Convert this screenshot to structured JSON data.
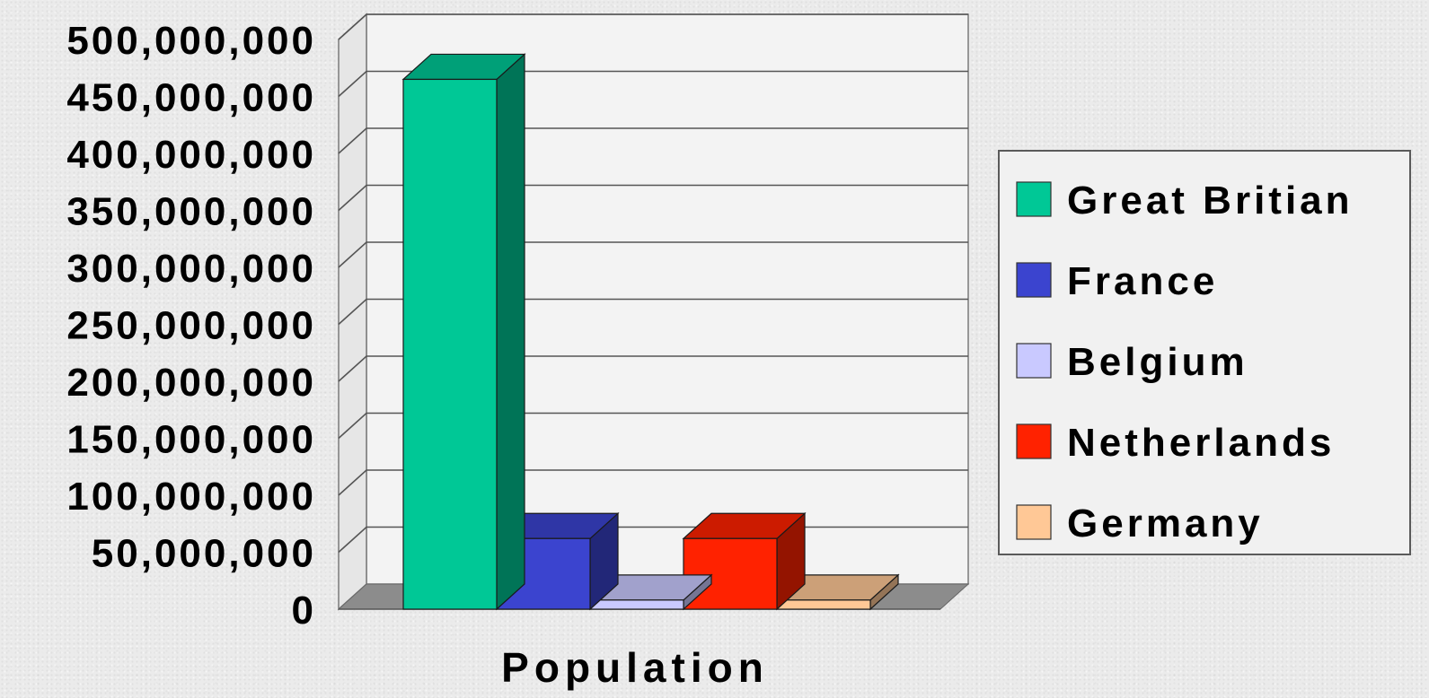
{
  "chart_data": {
    "type": "bar",
    "categories": [
      "Population"
    ],
    "xlabel": "Population",
    "ylim": [
      0,
      500000000
    ],
    "yticks": [
      0,
      50000000,
      100000000,
      150000000,
      200000000,
      250000000,
      300000000,
      350000000,
      400000000,
      450000000,
      500000000
    ],
    "ytick_labels": [
      "0",
      "50,000,000",
      "100,000,000",
      "150,000,000",
      "200,000,000",
      "250,000,000",
      "300,000,000",
      "350,000,000",
      "400,000,000",
      "450,000,000",
      "500,000,000"
    ],
    "grid": true,
    "three_d": true,
    "legend_position": "right",
    "series": [
      {
        "name": "Great Britian",
        "values": [
          465000000
        ],
        "color": "#00c896"
      },
      {
        "name": "France",
        "values": [
          62000000
        ],
        "color": "#3b44cf"
      },
      {
        "name": "Belgium",
        "values": [
          8000000
        ],
        "color": "#c9c9ff"
      },
      {
        "name": "Netherlands",
        "values": [
          62000000
        ],
        "color": "#ff2200"
      },
      {
        "name": "Germany",
        "values": [
          8000000
        ],
        "color": "#ffc896"
      }
    ]
  }
}
